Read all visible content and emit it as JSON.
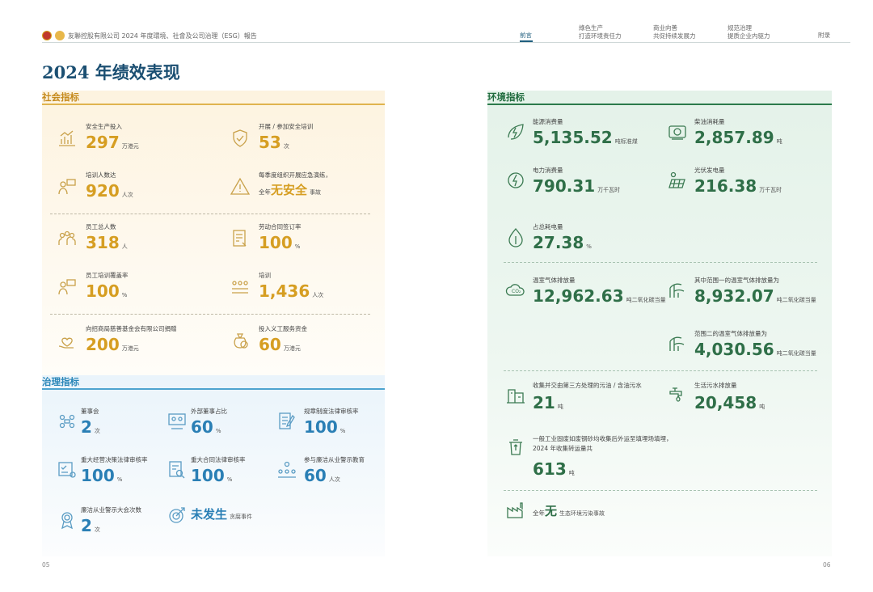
{
  "header": {
    "doc_title": "友聯控股有限公司 2024 年度環境、社會及公司治理（ESG）報告",
    "nav": [
      {
        "line1": "前言",
        "line2": ""
      },
      {
        "line1": "綠色生产",
        "line2": "打造环境责任力"
      },
      {
        "line1": "商业向善",
        "line2": "共促持续发展力"
      },
      {
        "line1": "规范治理",
        "line2": "提质企业内驱力"
      },
      {
        "line1": "附录",
        "line2": ""
      }
    ]
  },
  "page_title": "2024 年绩效表现",
  "social": {
    "heading": "社会指标",
    "items": [
      {
        "label": "安全生产投入",
        "value": "297",
        "unit": "万港元"
      },
      {
        "label": "开展 / 参加安全培训",
        "value": "53",
        "unit": "次"
      },
      {
        "label": "培训人数达",
        "value": "920",
        "unit": "人次"
      },
      {
        "label": "每季度组织开展应急演练，",
        "lead": "全年",
        "value": "无安全",
        "unit": "事故"
      },
      {
        "label": "员工总人数",
        "value": "318",
        "unit": "人"
      },
      {
        "label": "劳动合同签订率",
        "value": "100",
        "unit": "%"
      },
      {
        "label": "员工培训覆盖率",
        "value": "100",
        "unit": "%"
      },
      {
        "label": "培训",
        "value": "1,436",
        "unit": "人次"
      },
      {
        "label": "向招商局慈善基金会有限公司捐赠",
        "value": "200",
        "unit": "万港元"
      },
      {
        "label": "投入义工服务资金",
        "value": "60",
        "unit": "万港元"
      }
    ]
  },
  "governance": {
    "heading": "治理指标",
    "items": [
      {
        "label": "董事会",
        "value": "2",
        "unit": "次"
      },
      {
        "label": "外部董事占比",
        "value": "60",
        "unit": "%"
      },
      {
        "label": "规章制度法律审核率",
        "value": "100",
        "unit": "%"
      },
      {
        "label": "重大经营决策法律审核率",
        "value": "100",
        "unit": "%"
      },
      {
        "label": "重大合同法律审核率",
        "value": "100",
        "unit": "%"
      },
      {
        "label": "参与廉洁从业警示教育",
        "value": "60",
        "unit": "人次"
      },
      {
        "label": "廉洁从业警示大会次数",
        "value": "2",
        "unit": "次"
      },
      {
        "label": "",
        "value": "未发生",
        "unit": "贪腐事件"
      }
    ]
  },
  "environment": {
    "heading": "环境指标",
    "items": [
      {
        "label": "能源消费量",
        "value": "5,135.52",
        "unit": "吨标准煤"
      },
      {
        "label": "柴油消耗量",
        "value": "2,857.89",
        "unit": "吨"
      },
      {
        "label": "电力消费量",
        "value": "790.31",
        "unit": "万千瓦时"
      },
      {
        "label": "光伏发电量",
        "value": "216.38",
        "unit": "万千瓦时"
      },
      {
        "label": "占总耗电量",
        "value": "27.38",
        "unit": "%"
      },
      {
        "label": "温室气体排放量",
        "value": "12,962.63",
        "unit": "吨二氧化碳当量"
      },
      {
        "label": "其中范围一的温室气体排放量为",
        "value": "8,932.07",
        "unit": "吨二氧化碳当量"
      },
      {
        "label": "范围二的温室气体排放量为",
        "value": "4,030.56",
        "unit": "吨二氧化碳当量"
      },
      {
        "label": "收集并交由第三方处理的污油 / 含油污水",
        "value": "21",
        "unit": "吨"
      },
      {
        "label": "生活污水排放量",
        "value": "20,458",
        "unit": "吨"
      },
      {
        "label": "一般工业固废如废钢砂均收集后外运至填埋场填埋，",
        "label2": "2024 年收集转运量共",
        "value": "613",
        "unit": "吨"
      },
      {
        "label": "",
        "lead": "全年",
        "value": "无",
        "unit": "生态环境污染事故"
      }
    ]
  },
  "page_numbers": {
    "left": "05",
    "right": "06"
  }
}
